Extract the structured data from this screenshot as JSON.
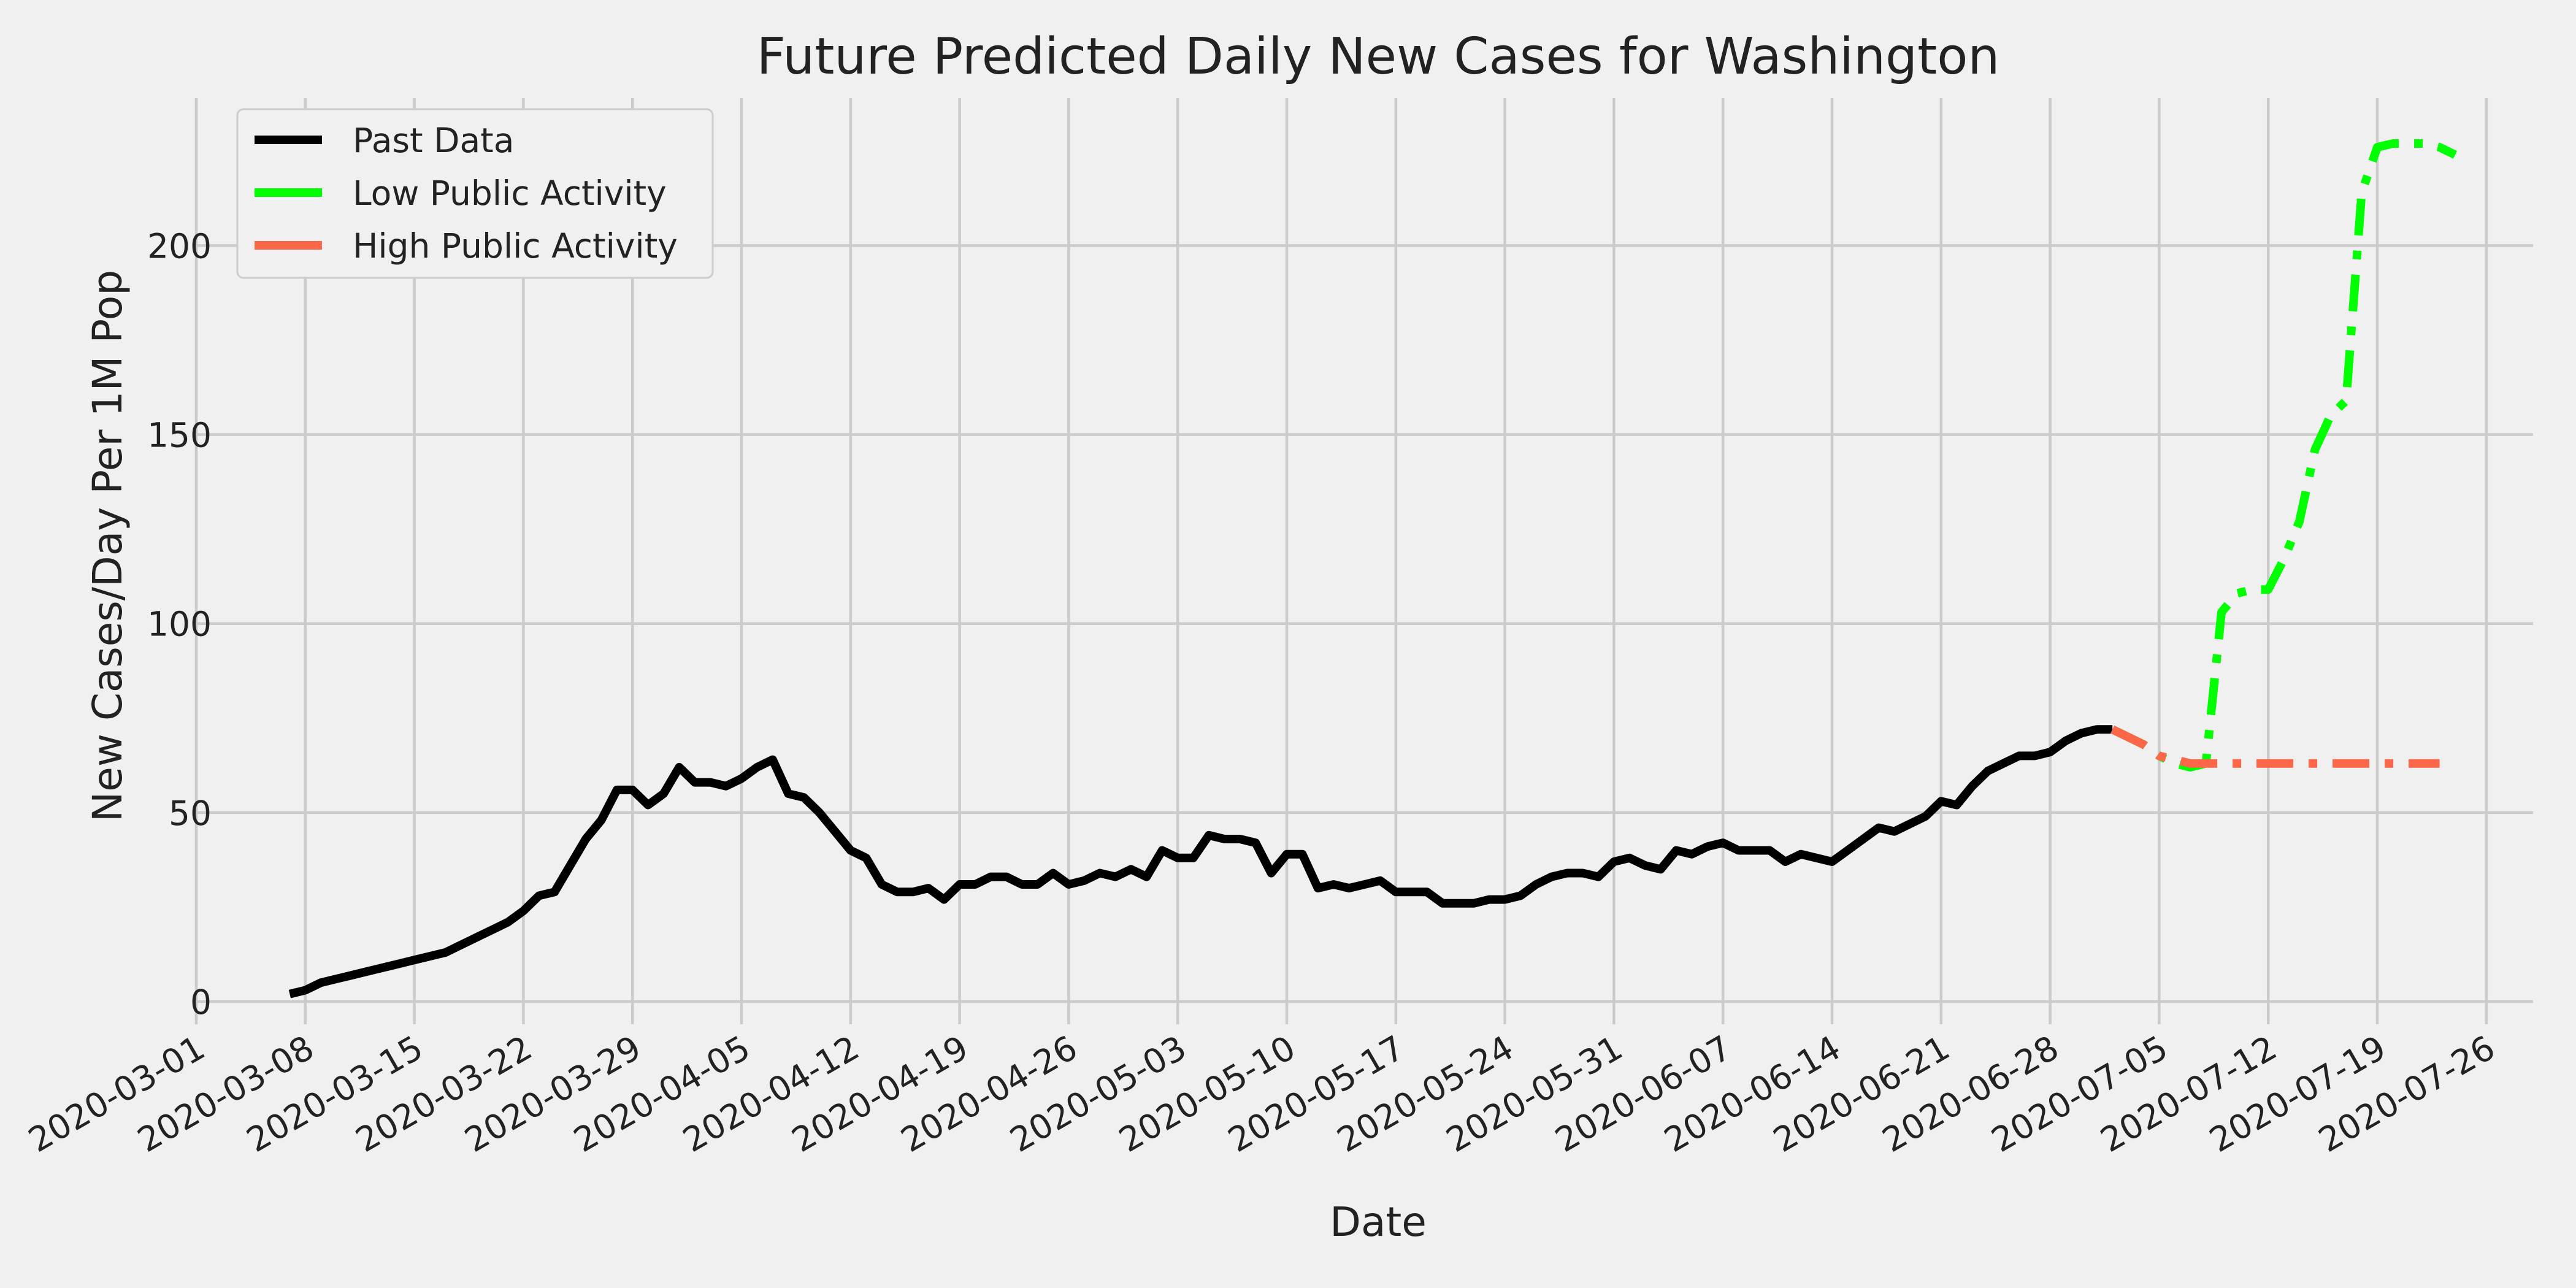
{
  "chart_data": {
    "type": "line",
    "title": "Future Predicted Daily New Cases for Washington",
    "xlabel": "Date",
    "ylabel": "New Cases/Day Per 1M Pop",
    "xlim": [
      "2020-03-01",
      "2020-07-29"
    ],
    "ylim": [
      -6,
      239
    ],
    "grid": true,
    "legend_position": "top-left",
    "x_ticks": [
      "2020-03-01",
      "2020-03-08",
      "2020-03-15",
      "2020-03-22",
      "2020-03-29",
      "2020-04-05",
      "2020-04-12",
      "2020-04-19",
      "2020-04-26",
      "2020-05-03",
      "2020-05-10",
      "2020-05-17",
      "2020-05-24",
      "2020-05-31",
      "2020-06-07",
      "2020-06-14",
      "2020-06-21",
      "2020-06-28",
      "2020-07-05",
      "2020-07-12",
      "2020-07-19",
      "2020-07-26"
    ],
    "y_ticks": [
      "0",
      "50",
      "100",
      "150",
      "200"
    ],
    "series": [
      {
        "name": "Past Data",
        "color": "#000000",
        "style": "solid",
        "points": [
          [
            "2020-03-07",
            2
          ],
          [
            "2020-03-08",
            3
          ],
          [
            "2020-03-09",
            5
          ],
          [
            "2020-03-10",
            6
          ],
          [
            "2020-03-11",
            7
          ],
          [
            "2020-03-12",
            8
          ],
          [
            "2020-03-13",
            9
          ],
          [
            "2020-03-14",
            10
          ],
          [
            "2020-03-15",
            11
          ],
          [
            "2020-03-16",
            12
          ],
          [
            "2020-03-17",
            13
          ],
          [
            "2020-03-18",
            15
          ],
          [
            "2020-03-19",
            17
          ],
          [
            "2020-03-20",
            19
          ],
          [
            "2020-03-21",
            21
          ],
          [
            "2020-03-22",
            24
          ],
          [
            "2020-03-23",
            28
          ],
          [
            "2020-03-24",
            29
          ],
          [
            "2020-03-25",
            36
          ],
          [
            "2020-03-26",
            43
          ],
          [
            "2020-03-27",
            48
          ],
          [
            "2020-03-28",
            56
          ],
          [
            "2020-03-29",
            56
          ],
          [
            "2020-03-30",
            52
          ],
          [
            "2020-03-31",
            55
          ],
          [
            "2020-04-01",
            62
          ],
          [
            "2020-04-02",
            58
          ],
          [
            "2020-04-03",
            58
          ],
          [
            "2020-04-04",
            57
          ],
          [
            "2020-04-05",
            59
          ],
          [
            "2020-04-06",
            62
          ],
          [
            "2020-04-07",
            64
          ],
          [
            "2020-04-08",
            55
          ],
          [
            "2020-04-09",
            54
          ],
          [
            "2020-04-10",
            50
          ],
          [
            "2020-04-11",
            45
          ],
          [
            "2020-04-12",
            40
          ],
          [
            "2020-04-13",
            38
          ],
          [
            "2020-04-14",
            31
          ],
          [
            "2020-04-15",
            29
          ],
          [
            "2020-04-16",
            29
          ],
          [
            "2020-04-17",
            30
          ],
          [
            "2020-04-18",
            27
          ],
          [
            "2020-04-19",
            31
          ],
          [
            "2020-04-20",
            31
          ],
          [
            "2020-04-21",
            33
          ],
          [
            "2020-04-22",
            33
          ],
          [
            "2020-04-23",
            31
          ],
          [
            "2020-04-24",
            31
          ],
          [
            "2020-04-25",
            34
          ],
          [
            "2020-04-26",
            31
          ],
          [
            "2020-04-27",
            32
          ],
          [
            "2020-04-28",
            34
          ],
          [
            "2020-04-29",
            33
          ],
          [
            "2020-04-30",
            35
          ],
          [
            "2020-05-01",
            33
          ],
          [
            "2020-05-02",
            40
          ],
          [
            "2020-05-03",
            38
          ],
          [
            "2020-05-04",
            38
          ],
          [
            "2020-05-05",
            44
          ],
          [
            "2020-05-06",
            43
          ],
          [
            "2020-05-07",
            43
          ],
          [
            "2020-05-08",
            42
          ],
          [
            "2020-05-09",
            34
          ],
          [
            "2020-05-10",
            39
          ],
          [
            "2020-05-11",
            39
          ],
          [
            "2020-05-12",
            30
          ],
          [
            "2020-05-13",
            31
          ],
          [
            "2020-05-14",
            30
          ],
          [
            "2020-05-15",
            31
          ],
          [
            "2020-05-16",
            32
          ],
          [
            "2020-05-17",
            29
          ],
          [
            "2020-05-18",
            29
          ],
          [
            "2020-05-19",
            29
          ],
          [
            "2020-05-20",
            26
          ],
          [
            "2020-05-21",
            26
          ],
          [
            "2020-05-22",
            26
          ],
          [
            "2020-05-23",
            27
          ],
          [
            "2020-05-24",
            27
          ],
          [
            "2020-05-25",
            28
          ],
          [
            "2020-05-26",
            31
          ],
          [
            "2020-05-27",
            33
          ],
          [
            "2020-05-28",
            34
          ],
          [
            "2020-05-29",
            34
          ],
          [
            "2020-05-30",
            33
          ],
          [
            "2020-05-31",
            37
          ],
          [
            "2020-06-01",
            38
          ],
          [
            "2020-06-02",
            36
          ],
          [
            "2020-06-03",
            35
          ],
          [
            "2020-06-04",
            40
          ],
          [
            "2020-06-05",
            39
          ],
          [
            "2020-06-06",
            41
          ],
          [
            "2020-06-07",
            42
          ],
          [
            "2020-06-08",
            40
          ],
          [
            "2020-06-09",
            40
          ],
          [
            "2020-06-10",
            40
          ],
          [
            "2020-06-11",
            37
          ],
          [
            "2020-06-12",
            39
          ],
          [
            "2020-06-13",
            38
          ],
          [
            "2020-06-14",
            37
          ],
          [
            "2020-06-15",
            40
          ],
          [
            "2020-06-16",
            43
          ],
          [
            "2020-06-17",
            46
          ],
          [
            "2020-06-18",
            45
          ],
          [
            "2020-06-19",
            47
          ],
          [
            "2020-06-20",
            49
          ],
          [
            "2020-06-21",
            53
          ],
          [
            "2020-06-22",
            52
          ],
          [
            "2020-06-23",
            57
          ],
          [
            "2020-06-24",
            61
          ],
          [
            "2020-06-25",
            63
          ],
          [
            "2020-06-26",
            65
          ],
          [
            "2020-06-27",
            65
          ],
          [
            "2020-06-28",
            66
          ],
          [
            "2020-06-29",
            69
          ],
          [
            "2020-06-30",
            71
          ],
          [
            "2020-07-01",
            72
          ],
          [
            "2020-07-02",
            72
          ]
        ]
      },
      {
        "name": "Low Public Activity",
        "color": "#00ff00",
        "style": "dashdot",
        "points": [
          [
            "2020-07-02",
            72
          ],
          [
            "2020-07-03",
            70
          ],
          [
            "2020-07-04",
            68
          ],
          [
            "2020-07-05",
            65
          ],
          [
            "2020-07-06",
            63
          ],
          [
            "2020-07-07",
            62
          ],
          [
            "2020-07-08",
            63
          ],
          [
            "2020-07-09",
            103
          ],
          [
            "2020-07-10",
            108
          ],
          [
            "2020-07-11",
            109
          ],
          [
            "2020-07-12",
            109
          ],
          [
            "2020-07-13",
            117
          ],
          [
            "2020-07-14",
            127
          ],
          [
            "2020-07-15",
            146
          ],
          [
            "2020-07-16",
            155
          ],
          [
            "2020-07-17",
            159
          ],
          [
            "2020-07-18",
            214
          ],
          [
            "2020-07-19",
            226
          ],
          [
            "2020-07-20",
            227
          ],
          [
            "2020-07-21",
            227
          ],
          [
            "2020-07-22",
            227
          ],
          [
            "2020-07-23",
            226
          ],
          [
            "2020-07-24",
            224
          ]
        ]
      },
      {
        "name": "High Public Activity",
        "color": "#fc6649",
        "style": "dashdot",
        "points": [
          [
            "2020-07-02",
            72
          ],
          [
            "2020-07-03",
            70
          ],
          [
            "2020-07-04",
            68
          ],
          [
            "2020-07-05",
            65
          ],
          [
            "2020-07-06",
            64
          ],
          [
            "2020-07-07",
            63
          ],
          [
            "2020-07-08",
            63
          ],
          [
            "2020-07-09",
            63
          ],
          [
            "2020-07-10",
            63
          ],
          [
            "2020-07-11",
            63
          ],
          [
            "2020-07-12",
            63
          ],
          [
            "2020-07-13",
            63
          ],
          [
            "2020-07-14",
            63
          ],
          [
            "2020-07-15",
            63
          ],
          [
            "2020-07-16",
            63
          ],
          [
            "2020-07-17",
            63
          ],
          [
            "2020-07-18",
            63
          ],
          [
            "2020-07-19",
            63
          ],
          [
            "2020-07-20",
            63
          ],
          [
            "2020-07-21",
            63
          ],
          [
            "2020-07-22",
            63
          ],
          [
            "2020-07-23",
            63
          ]
        ]
      }
    ]
  }
}
